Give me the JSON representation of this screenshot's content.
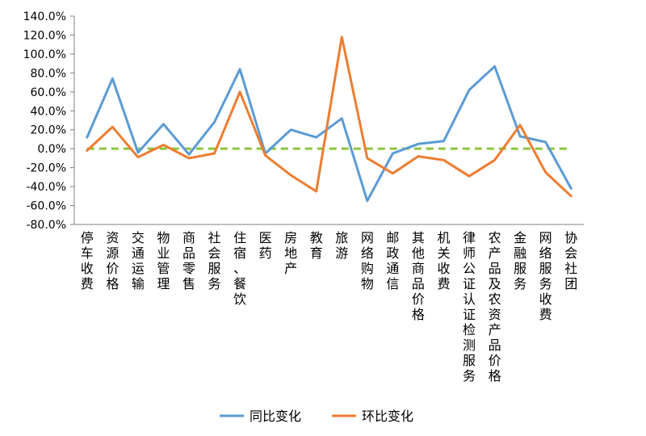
{
  "chart_data": {
    "type": "line",
    "ylim": [
      -80,
      140
    ],
    "yticks": [
      "140.0%",
      "120.0%",
      "100.0%",
      "80.0%",
      "60.0%",
      "40.0%",
      "20.0%",
      "0.0%",
      "-20.0%",
      "-40.0%",
      "-60.0%",
      "-80.0%"
    ],
    "ytick_values": [
      140,
      120,
      100,
      80,
      60,
      40,
      20,
      0,
      -20,
      -40,
      -60,
      -80
    ],
    "categories": [
      "停车收费",
      "资源价格",
      "交通运输",
      "物业管理",
      "商品零售",
      "社会服务",
      "住宿、餐饮",
      "医药",
      "房地产",
      "教育",
      "旅游",
      "网络购物",
      "邮政通信",
      "其他商品价格",
      "机关收费",
      "律师公证认证检测服务",
      "农产品及农资产品价格",
      "金融服务",
      "网络服务收费",
      "协会社团"
    ],
    "series": [
      {
        "name": "同比变化",
        "color": "#5B9BD5",
        "values": [
          12,
          74,
          -4,
          26,
          -6,
          28,
          84,
          -5,
          20,
          12,
          32,
          -55,
          -5,
          5,
          8,
          62,
          87,
          13,
          7,
          -42
        ]
      },
      {
        "name": "环比变化",
        "color": "#ED7D31",
        "values": [
          -2,
          23,
          -9,
          4,
          -10,
          -5,
          60,
          -7,
          -28,
          -45,
          118,
          -10,
          -26,
          -8,
          -12,
          -29,
          -12,
          25,
          -25,
          -50
        ]
      }
    ],
    "reference_line": {
      "value": 0,
      "color": "#8CC63F"
    },
    "legend": "bottom",
    "grid": false
  }
}
